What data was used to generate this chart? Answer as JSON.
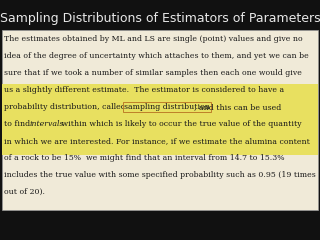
{
  "title": "Sampling Distributions of Estimators of Parameters",
  "title_color": "#e8e8e8",
  "title_fontsize": 9.0,
  "background_color": "#111111",
  "text_box_bg": "#f0ead8",
  "text_box_border": "#999999",
  "body_text_color": "#1a1a1a",
  "highlight_bg": "#e8e060",
  "highlight_border": "#b87020",
  "line1": "The estimates obtained by ML and LS are single (point) values and give no",
  "line2": "idea of the degree of uncertainty which attaches to them, and yet we can be",
  "line3": "sure that if we took a number of similar samples then each one would give",
  "line4_highlight": "us a slightly different estimate.",
  "line4_normal": "  The estimator is considered to have a",
  "line5_normal1": "probability distribution, called its ",
  "line5_boxed": "sampling distribution",
  "line5_normal2": ", and this can be used",
  "line6_pre": "to find ",
  "line6_italic": "intervals",
  "line6_rest": " within which is likely to occur the true value of the quantity",
  "line7": "in which we are interested. For instance, if we estimate the alumina content",
  "line8": "of a rock to be 15%  we might find that an interval from 14.7 to 15.3%",
  "line9": "includes the true value with some specified probability such as 0.95 (19 times",
  "line10": "out of 20)."
}
